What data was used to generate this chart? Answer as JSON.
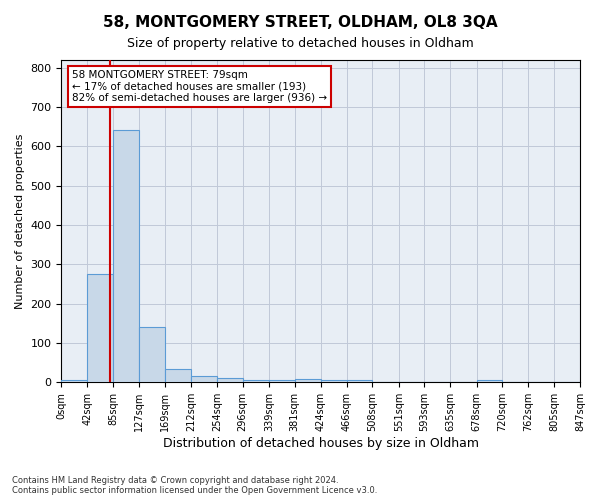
{
  "title_line1": "58, MONTGOMERY STREET, OLDHAM, OL8 3QA",
  "title_line2": "Size of property relative to detached houses in Oldham",
  "xlabel": "Distribution of detached houses by size in Oldham",
  "ylabel": "Number of detached properties",
  "footnote": "Contains HM Land Registry data © Crown copyright and database right 2024.\nContains public sector information licensed under the Open Government Licence v3.0.",
  "bin_labels": [
    "0sqm",
    "42sqm",
    "85sqm",
    "127sqm",
    "169sqm",
    "212sqm",
    "254sqm",
    "296sqm",
    "339sqm",
    "381sqm",
    "424sqm",
    "466sqm",
    "508sqm",
    "551sqm",
    "593sqm",
    "635sqm",
    "678sqm",
    "720sqm",
    "762sqm",
    "805sqm",
    "847sqm"
  ],
  "bin_edges": [
    0,
    42,
    85,
    127,
    169,
    212,
    254,
    296,
    339,
    381,
    424,
    466,
    508,
    551,
    593,
    635,
    678,
    720,
    762,
    805,
    847
  ],
  "bar_values": [
    7,
    275,
    643,
    140,
    33,
    16,
    10,
    7,
    7,
    8,
    5,
    5,
    0,
    0,
    0,
    0,
    7,
    0,
    0,
    0
  ],
  "bar_color": "#c8d8e8",
  "bar_edge_color": "#5b9bd5",
  "grid_color": "#c0c8d8",
  "background_color": "#e8eef5",
  "property_line_x": 79,
  "xlim": [
    0,
    847
  ],
  "ylim": [
    0,
    820
  ],
  "yticks": [
    0,
    100,
    200,
    300,
    400,
    500,
    600,
    700,
    800
  ],
  "annotation_text": "58 MONTGOMERY STREET: 79sqm\n← 17% of detached houses are smaller (193)\n82% of semi-detached houses are larger (936) →",
  "annotation_box_color": "#ffffff",
  "annotation_box_edge": "#cc0000",
  "property_line_color": "#cc0000"
}
